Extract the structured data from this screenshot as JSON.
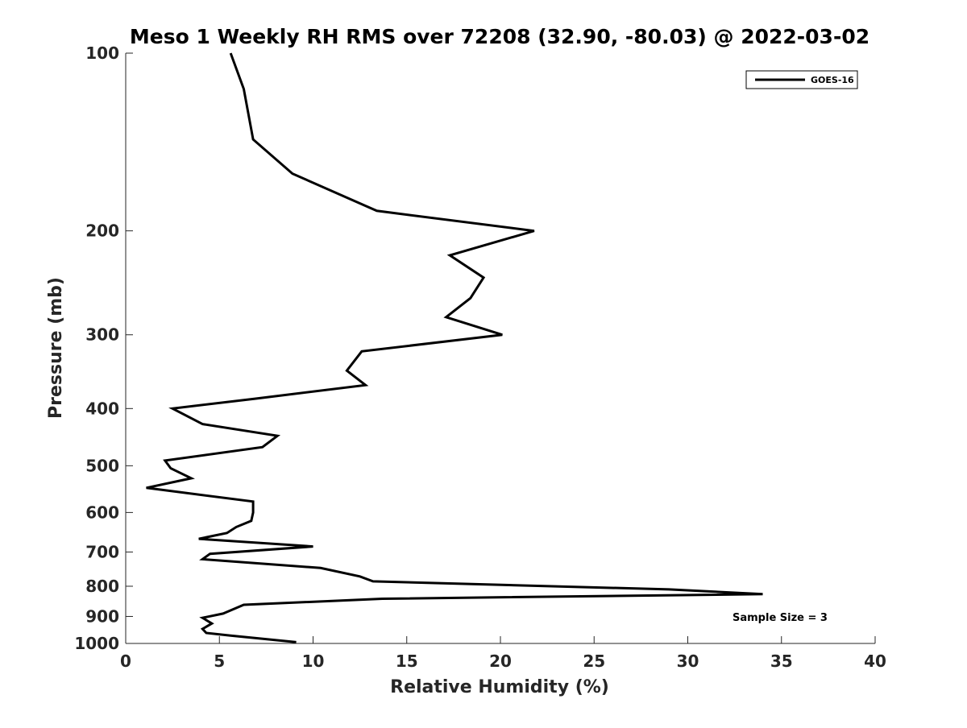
{
  "chart_data": {
    "type": "line",
    "title": "Meso 1 Weekly RH RMS over 72208 (32.90, -80.03) @ 2022-03-02",
    "xlabel": "Relative Humidity (%)",
    "ylabel": "Pressure (mb)",
    "xlim": [
      0,
      40
    ],
    "ylim": [
      1000,
      100
    ],
    "y_scale": "log",
    "y_inverted": true,
    "x_ticks": [
      0,
      5,
      10,
      15,
      20,
      25,
      30,
      35,
      40
    ],
    "y_ticks": [
      100,
      200,
      300,
      400,
      500,
      600,
      700,
      800,
      900,
      1000
    ],
    "grid": false,
    "legend_position": "top-right",
    "annotation": "Sample Size = 3",
    "series": [
      {
        "name": "GOES-16",
        "color": "#000000",
        "x": [
          5.6,
          6.3,
          6.8,
          8.9,
          13.4,
          21.8,
          17.3,
          19.1,
          18.4,
          17.1,
          20.1,
          12.6,
          11.8,
          12.8,
          6.9,
          2.5,
          4.1,
          8.1,
          7.3,
          2.1,
          2.4,
          3.5,
          1.1,
          6.8,
          6.8,
          6.7,
          5.9,
          5.4,
          3.9,
          10.0,
          4.5,
          4.1,
          10.4,
          12.5,
          13.2,
          29.0,
          34.0,
          13.7,
          6.3,
          5.2,
          4.1,
          4.6,
          4.1,
          4.3,
          5.6,
          9.1
        ],
        "y": [
          100,
          115,
          140,
          160,
          185,
          200,
          220,
          240,
          260,
          280,
          300,
          320,
          345,
          365,
          385,
          400,
          425,
          445,
          465,
          490,
          505,
          525,
          545,
          575,
          600,
          620,
          635,
          650,
          665,
          685,
          705,
          720,
          745,
          770,
          785,
          810,
          825,
          840,
          860,
          890,
          905,
          925,
          945,
          960,
          970,
          995
        ]
      }
    ]
  }
}
